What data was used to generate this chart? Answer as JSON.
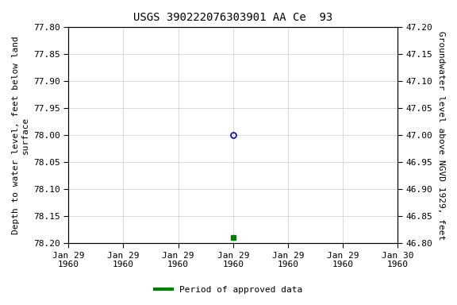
{
  "title": "USGS 390222076303901 AA Ce  93",
  "ylabel_left": "Depth to water level, feet below land\nsurface",
  "ylabel_right": "Groundwater level above NGVD 1929, feet",
  "ylim_left": [
    78.2,
    77.8
  ],
  "ylim_right": [
    46.8,
    47.2
  ],
  "yticks_left": [
    77.8,
    77.85,
    77.9,
    77.95,
    78.0,
    78.05,
    78.1,
    78.15,
    78.2
  ],
  "yticks_right": [
    47.2,
    47.15,
    47.1,
    47.05,
    47.0,
    46.95,
    46.9,
    46.85,
    46.8
  ],
  "ytick_labels_left": [
    "77.80",
    "77.85",
    "77.90",
    "77.95",
    "78.00",
    "78.05",
    "78.10",
    "78.15",
    "78.20"
  ],
  "ytick_labels_right": [
    "47.20",
    "47.15",
    "47.10",
    "47.05",
    "47.00",
    "46.95",
    "46.90",
    "46.85",
    "46.80"
  ],
  "data_point_open_x": 3,
  "data_point_open_y": 78.0,
  "data_point_open_color": "#0000cc",
  "data_point_filled_x": 3,
  "data_point_filled_y": 78.19,
  "data_point_filled_color": "#008000",
  "num_xticks": 7,
  "xtick_labels": [
    "Jan 29\n1960",
    "Jan 29\n1960",
    "Jan 29\n1960",
    "Jan 29\n1960",
    "Jan 29\n1960",
    "Jan 29\n1960",
    "Jan 30\n1960"
  ],
  "xlim": [
    0,
    6
  ],
  "grid_color": "#cccccc",
  "background_color": "#ffffff",
  "legend_label": "Period of approved data",
  "legend_color": "#008000",
  "title_fontsize": 10,
  "label_fontsize": 8,
  "tick_fontsize": 8
}
